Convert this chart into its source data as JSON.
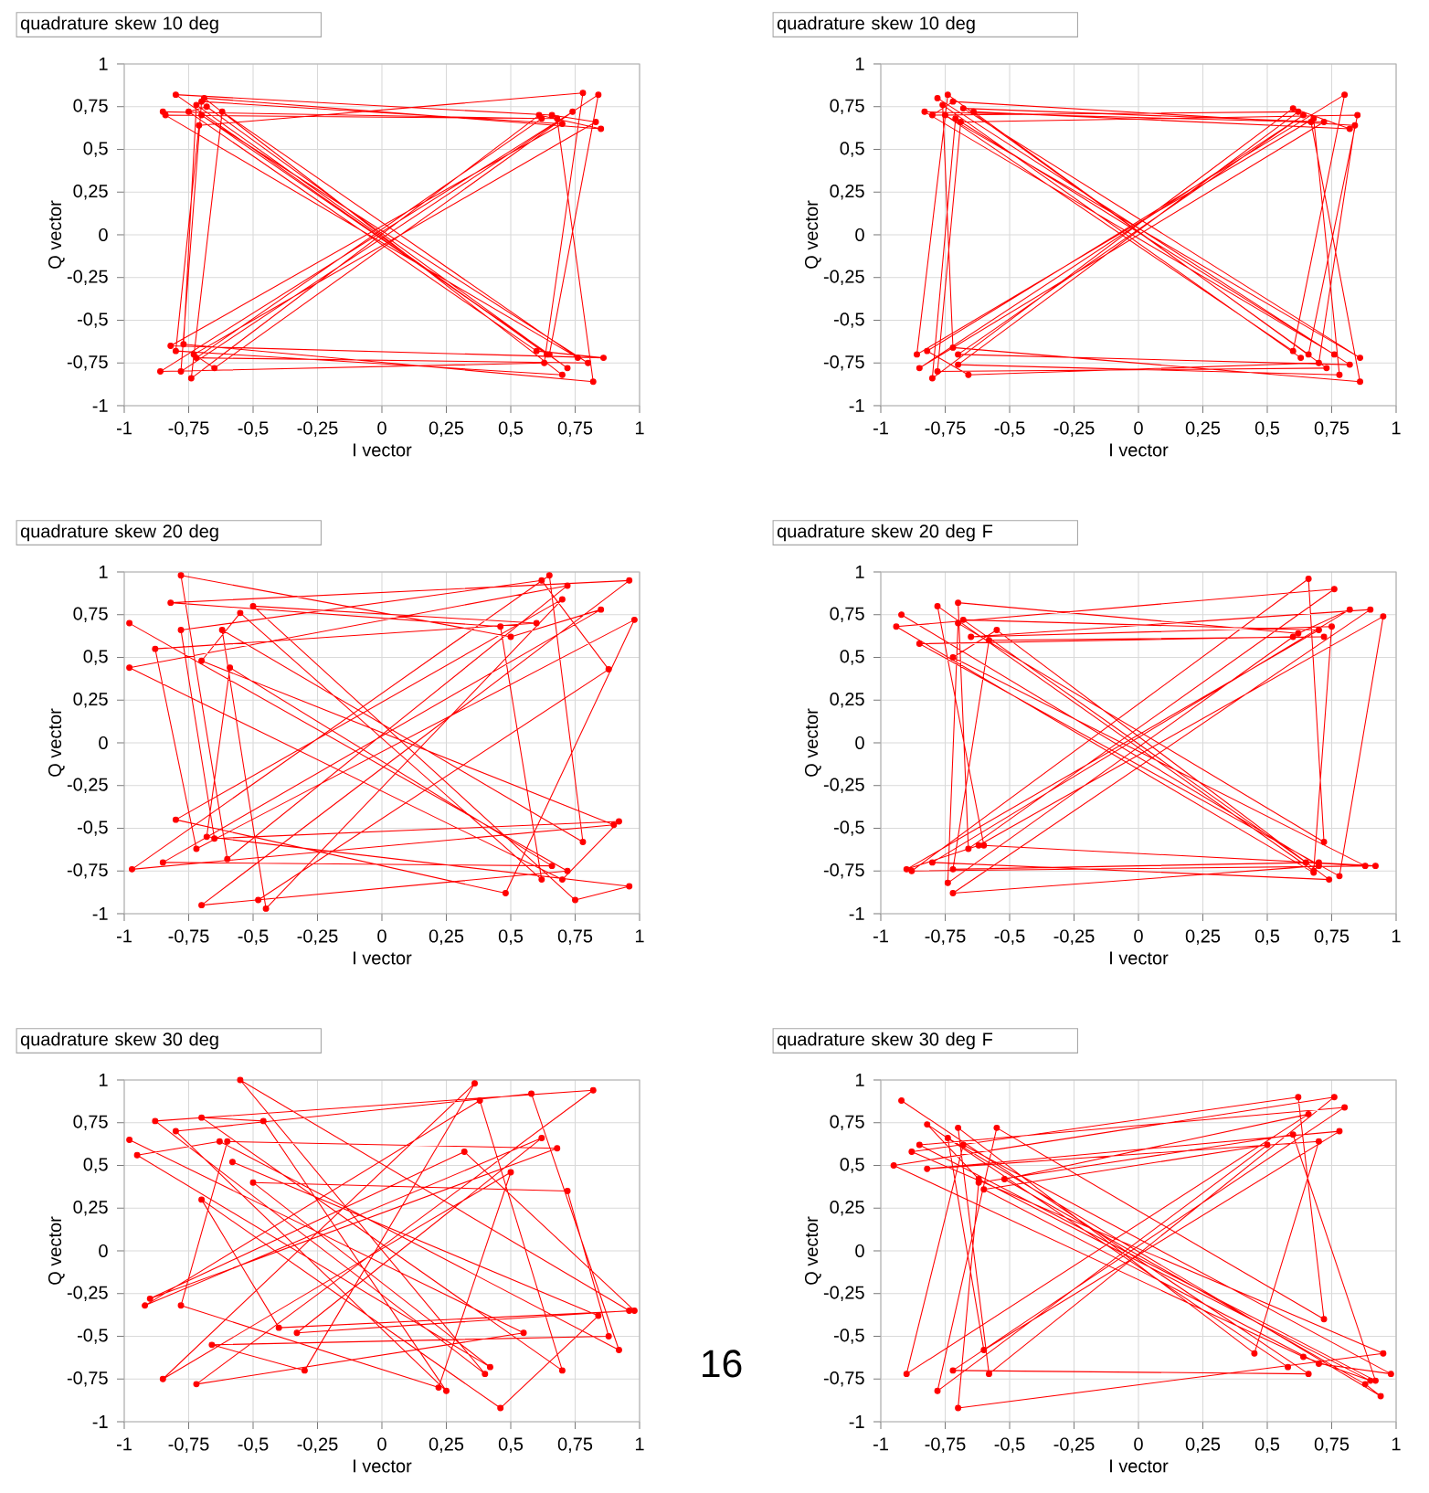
{
  "chart_data": [
    {
      "type": "line",
      "title": "quadrature skew 10 deg",
      "xlabel": "I vector",
      "ylabel": "Q vector",
      "color": "#ff0000",
      "marker": "circle",
      "grid": true,
      "xlim": [
        -1,
        1
      ],
      "ylim": [
        -1,
        1
      ],
      "xticks": [
        -1,
        {
          "value": -0.75,
          "label": "-0,75"
        },
        {
          "value": -0.5,
          "label": "-0,5"
        },
        {
          "value": -0.25,
          "label": "-0,25"
        },
        0,
        {
          "value": 0.25,
          "label": "0,25"
        },
        {
          "value": 0.5,
          "label": "0,5"
        },
        {
          "value": 0.75,
          "label": "0,75"
        },
        1
      ],
      "yticks": [
        -1,
        {
          "value": -0.75,
          "label": "-0,75"
        },
        {
          "value": -0.5,
          "label": "-0,5"
        },
        {
          "value": -0.25,
          "label": "-0,25"
        },
        0,
        {
          "value": 0.25,
          "label": "0,25"
        },
        {
          "value": 0.5,
          "label": "0,5"
        },
        {
          "value": 0.75,
          "label": "0,75"
        },
        1
      ],
      "x": [
        -0.85,
        0.62,
        -0.72,
        0.8,
        -0.7,
        0.65,
        0.84,
        -0.78,
        -0.7,
        0.7,
        -0.82,
        0.86,
        0.6,
        -0.75,
        -0.68,
        0.72,
        -0.8,
        0.66,
        0.83,
        -0.73,
        -0.65,
        0.74,
        -0.86,
        0.63,
        0.78,
        -0.71,
        -0.8,
        0.7,
        -0.69,
        0.85,
        0.61,
        -0.74,
        -0.62,
        0.76,
        -0.84,
        0.68,
        0.82,
        -0.77,
        -0.72,
        0.64
      ],
      "values": [
        0.72,
        0.68,
        -0.72,
        -0.75,
        0.7,
        -0.7,
        0.82,
        -0.8,
        0.78,
        0.65,
        -0.65,
        -0.72,
        -0.68,
        0.72,
        0.75,
        -0.78,
        0.82,
        0.7,
        0.66,
        -0.7,
        -0.78,
        0.72,
        -0.8,
        -0.75,
        0.83,
        0.64,
        -0.68,
        -0.82,
        0.8,
        0.62,
        0.7,
        -0.84,
        0.72,
        -0.72,
        0.7,
        0.68,
        -0.86,
        -0.64,
        0.76,
        -0.7
      ]
    },
    {
      "type": "line",
      "title": "quadrature skew 10 deg",
      "xlabel": "I vector",
      "ylabel": "Q vector",
      "color": "#ff0000",
      "marker": "circle",
      "grid": true,
      "xlim": [
        -1,
        1
      ],
      "ylim": [
        -1,
        1
      ],
      "xticks": [
        -1,
        {
          "value": -0.75,
          "label": "-0,75"
        },
        {
          "value": -0.5,
          "label": "-0,5"
        },
        {
          "value": -0.25,
          "label": "-0,25"
        },
        0,
        {
          "value": 0.25,
          "label": "0,25"
        },
        {
          "value": 0.5,
          "label": "0,5"
        },
        {
          "value": 0.75,
          "label": "0,75"
        },
        1
      ],
      "yticks": [
        -1,
        {
          "value": -0.75,
          "label": "-0,75"
        },
        {
          "value": -0.5,
          "label": "-0,5"
        },
        {
          "value": -0.25,
          "label": "-0,25"
        },
        0,
        {
          "value": 0.25,
          "label": "0,25"
        },
        {
          "value": 0.5,
          "label": "0,5"
        },
        {
          "value": 0.75,
          "label": "0,75"
        },
        1
      ],
      "x": [
        -0.78,
        0.82,
        -0.7,
        0.64,
        -0.85,
        0.72,
        -0.68,
        0.86,
        -0.75,
        0.6,
        0.8,
        -0.82,
        -0.66,
        0.7,
        0.84,
        -0.72,
        -0.8,
        0.62,
        -0.7,
        0.78,
        0.68,
        -0.86,
        -0.74,
        0.66,
        0.85,
        -0.69,
        -0.78,
        0.73,
        -0.64,
        0.82,
        0.6,
        -0.8,
        -0.71,
        0.76,
        -0.83,
        0.67,
        0.86,
        -0.72,
        -0.76,
        0.63
      ],
      "values": [
        0.8,
        -0.76,
        -0.7,
        0.7,
        -0.78,
        0.66,
        0.74,
        -0.72,
        0.7,
        -0.68,
        0.82,
        -0.68,
        -0.82,
        -0.75,
        0.64,
        0.78,
        0.7,
        0.72,
        -0.76,
        -0.82,
        0.68,
        -0.7,
        0.82,
        -0.7,
        0.7,
        0.66,
        -0.8,
        -0.78,
        0.72,
        0.62,
        0.74,
        -0.84,
        0.68,
        -0.7,
        0.72,
        0.66,
        -0.86,
        -0.66,
        0.76,
        -0.72
      ]
    },
    {
      "type": "line",
      "title": "quadrature skew 20 deg",
      "xlabel": "I vector",
      "ylabel": "Q vector",
      "color": "#ff0000",
      "marker": "circle",
      "grid": true,
      "xlim": [
        -1,
        1
      ],
      "ylim": [
        -1,
        1
      ],
      "xticks": [
        -1,
        {
          "value": -0.75,
          "label": "-0,75"
        },
        {
          "value": -0.5,
          "label": "-0,5"
        },
        {
          "value": -0.25,
          "label": "-0,25"
        },
        0,
        {
          "value": 0.25,
          "label": "0,25"
        },
        {
          "value": 0.5,
          "label": "0,5"
        },
        {
          "value": 0.75,
          "label": "0,75"
        },
        1
      ],
      "yticks": [
        -1,
        {
          "value": -0.75,
          "label": "-0,75"
        },
        {
          "value": -0.5,
          "label": "-0,5"
        },
        {
          "value": -0.25,
          "label": "-0,25"
        },
        0,
        {
          "value": 0.25,
          "label": "0,25"
        },
        {
          "value": 0.5,
          "label": "0,5"
        },
        {
          "value": 0.75,
          "label": "0,75"
        },
        1
      ],
      "x": [
        -0.98,
        0.72,
        -0.7,
        0.96,
        -0.82,
        0.46,
        0.62,
        -0.55,
        -0.7,
        0.9,
        -0.97,
        0.65,
        0.78,
        -0.62,
        -0.45,
        0.7,
        -0.8,
        0.48,
        0.98,
        -0.72,
        -0.88,
        0.6,
        -0.5,
        0.75,
        0.96,
        -0.68,
        -0.59,
        0.66,
        -0.85,
        0.85,
        0.5,
        -0.78,
        -0.6,
        0.72,
        -0.98,
        0.7,
        0.92,
        -0.65,
        -0.78,
        0.62,
        0.88,
        -0.48
      ],
      "values": [
        0.7,
        -0.75,
        -0.95,
        0.95,
        0.82,
        0.68,
        -0.8,
        0.76,
        0.48,
        -0.48,
        -0.74,
        0.98,
        -0.58,
        0.66,
        -0.97,
        0.84,
        -0.45,
        -0.88,
        0.72,
        -0.62,
        0.55,
        0.7,
        0.8,
        -0.92,
        -0.84,
        -0.55,
        0.44,
        -0.72,
        -0.7,
        0.78,
        0.62,
        0.98,
        -0.68,
        0.92,
        0.44,
        -0.8,
        -0.46,
        -0.56,
        0.66,
        0.95,
        0.43,
        -0.92
      ]
    },
    {
      "type": "line",
      "title": "quadrature skew 20 deg F",
      "xlabel": "I vector",
      "ylabel": "Q vector",
      "color": "#ff0000",
      "marker": "circle",
      "grid": true,
      "xlim": [
        -1,
        1
      ],
      "ylim": [
        -1,
        1
      ],
      "xticks": [
        -1,
        {
          "value": -0.75,
          "label": "-0,75"
        },
        {
          "value": -0.5,
          "label": "-0,5"
        },
        {
          "value": -0.25,
          "label": "-0,25"
        },
        0,
        {
          "value": 0.25,
          "label": "0,25"
        },
        {
          "value": 0.5,
          "label": "0,5"
        },
        {
          "value": 0.75,
          "label": "0,75"
        },
        1
      ],
      "yticks": [
        -1,
        {
          "value": -0.75,
          "label": "-0,75"
        },
        {
          "value": -0.5,
          "label": "-0,5"
        },
        {
          "value": -0.25,
          "label": "-0,25"
        },
        0,
        {
          "value": 0.25,
          "label": "0,25"
        },
        {
          "value": 0.5,
          "label": "0,5"
        },
        {
          "value": 0.75,
          "label": "0,75"
        },
        1
      ],
      "x": [
        -0.92,
        0.7,
        -0.72,
        0.9,
        -0.65,
        0.75,
        0.68,
        -0.78,
        -0.6,
        0.92,
        -0.88,
        0.66,
        0.72,
        -0.7,
        -0.74,
        0.6,
        -0.85,
        0.78,
        0.95,
        -0.62,
        -0.9,
        0.7,
        -0.68,
        0.65,
        0.88,
        -0.72,
        -0.55,
        0.74,
        -0.8,
        0.82,
        0.62,
        -0.7,
        -0.66,
        0.76,
        -0.94,
        0.68,
        0.7,
        -0.72,
        -0.58,
        0.72
      ],
      "values": [
        0.75,
        -0.72,
        -0.88,
        0.78,
        0.62,
        0.68,
        -0.75,
        0.8,
        -0.6,
        -0.72,
        -0.75,
        0.96,
        -0.58,
        0.7,
        -0.82,
        0.62,
        0.58,
        -0.78,
        0.74,
        -0.6,
        -0.74,
        0.66,
        0.72,
        -0.7,
        -0.72,
        0.5,
        0.66,
        -0.8,
        -0.7,
        0.78,
        0.64,
        0.82,
        -0.62,
        0.9,
        0.68,
        -0.76,
        -0.7,
        -0.74,
        0.6,
        0.62
      ]
    },
    {
      "type": "line",
      "title": "quadrature skew 30 deg",
      "xlabel": "I vector",
      "ylabel": "Q vector",
      "color": "#ff0000",
      "marker": "circle",
      "grid": true,
      "xlim": [
        -1,
        1
      ],
      "ylim": [
        -1,
        1
      ],
      "xticks": [
        -1,
        {
          "value": -0.75,
          "label": "-0,75"
        },
        {
          "value": -0.5,
          "label": "-0,5"
        },
        {
          "value": -0.25,
          "label": "-0,25"
        },
        0,
        {
          "value": 0.25,
          "label": "0,25"
        },
        {
          "value": 0.5,
          "label": "0,5"
        },
        {
          "value": 0.75,
          "label": "0,75"
        },
        1
      ],
      "yticks": [
        -1,
        {
          "value": -0.75,
          "label": "-0,75"
        },
        {
          "value": -0.5,
          "label": "-0,5"
        },
        {
          "value": -0.25,
          "label": "-0,25"
        },
        0,
        {
          "value": 0.25,
          "label": "0,25"
        },
        {
          "value": 0.5,
          "label": "0,5"
        },
        {
          "value": 0.75,
          "label": "0,75"
        },
        1
      ],
      "x": [
        -0.98,
        0.55,
        -0.72,
        0.82,
        -0.88,
        0.4,
        -0.55,
        0.96,
        -0.33,
        0.62,
        -0.92,
        0.38,
        0.7,
        -0.7,
        -0.46,
        0.25,
        -0.8,
        0.58,
        0.92,
        -0.63,
        -0.95,
        0.42,
        -0.5,
        0.72,
        0.88,
        -0.66,
        -0.3,
        0.36,
        -0.85,
        0.5,
        0.22,
        -0.78,
        -0.6,
        0.68,
        -0.9,
        0.32,
        0.98,
        -0.4,
        -0.7,
        0.46,
        0.84,
        -0.58
      ],
      "values": [
        0.65,
        -0.48,
        -0.78,
        0.94,
        0.76,
        -0.72,
        1.0,
        -0.35,
        -0.48,
        0.66,
        -0.32,
        0.88,
        -0.7,
        0.78,
        0.76,
        -0.82,
        0.7,
        0.92,
        -0.58,
        0.64,
        0.56,
        -0.68,
        0.4,
        0.35,
        -0.5,
        -0.55,
        -0.7,
        0.98,
        -0.75,
        0.46,
        -0.8,
        -0.32,
        0.64,
        0.6,
        -0.28,
        0.58,
        -0.35,
        -0.45,
        0.3,
        -0.92,
        -0.38,
        0.52
      ],
      "annotations": [
        "16"
      ]
    },
    {
      "type": "line",
      "title": "quadrature skew 30 deg F",
      "xlabel": "I vector",
      "ylabel": "Q vector",
      "color": "#ff0000",
      "marker": "circle",
      "grid": true,
      "xlim": [
        -1,
        1
      ],
      "ylim": [
        -1,
        1
      ],
      "xticks": [
        -1,
        {
          "value": -0.75,
          "label": "-0,75"
        },
        {
          "value": -0.5,
          "label": "-0,5"
        },
        {
          "value": -0.25,
          "label": "-0,25"
        },
        0,
        {
          "value": 0.25,
          "label": "0,25"
        },
        {
          "value": 0.5,
          "label": "0,5"
        },
        {
          "value": 0.75,
          "label": "0,75"
        },
        1
      ],
      "yticks": [
        -1,
        {
          "value": -0.75,
          "label": "-0,75"
        },
        {
          "value": -0.5,
          "label": "-0,5"
        },
        {
          "value": -0.25,
          "label": "-0,25"
        },
        0,
        {
          "value": 0.25,
          "label": "0,25"
        },
        {
          "value": 0.5,
          "label": "0,5"
        },
        {
          "value": 0.75,
          "label": "0,75"
        },
        1
      ],
      "x": [
        -0.92,
        0.66,
        -0.72,
        0.8,
        -0.85,
        0.92,
        0.6,
        -0.62,
        -0.7,
        0.95,
        -0.88,
        0.62,
        0.72,
        -0.55,
        -0.78,
        0.5,
        -0.6,
        0.7,
        0.98,
        -0.68,
        -0.9,
        0.66,
        -0.52,
        0.88,
        0.94,
        -0.74,
        -0.6,
        0.78,
        -0.82,
        0.7,
        0.45,
        -0.7,
        -0.58,
        0.76,
        -0.95,
        0.64,
        0.9,
        -0.62,
        -0.82,
        0.58
      ],
      "values": [
        0.88,
        -0.72,
        -0.7,
        0.84,
        0.62,
        -0.76,
        0.68,
        0.4,
        -0.92,
        -0.6,
        0.58,
        0.9,
        -0.4,
        0.72,
        -0.82,
        0.62,
        0.36,
        -0.66,
        -0.72,
        0.62,
        -0.72,
        0.8,
        0.42,
        -0.78,
        -0.85,
        0.66,
        -0.58,
        0.7,
        0.48,
        0.64,
        -0.6,
        0.72,
        -0.72,
        0.9,
        0.5,
        -0.62,
        -0.76,
        0.42,
        0.74,
        -0.68
      ]
    }
  ]
}
